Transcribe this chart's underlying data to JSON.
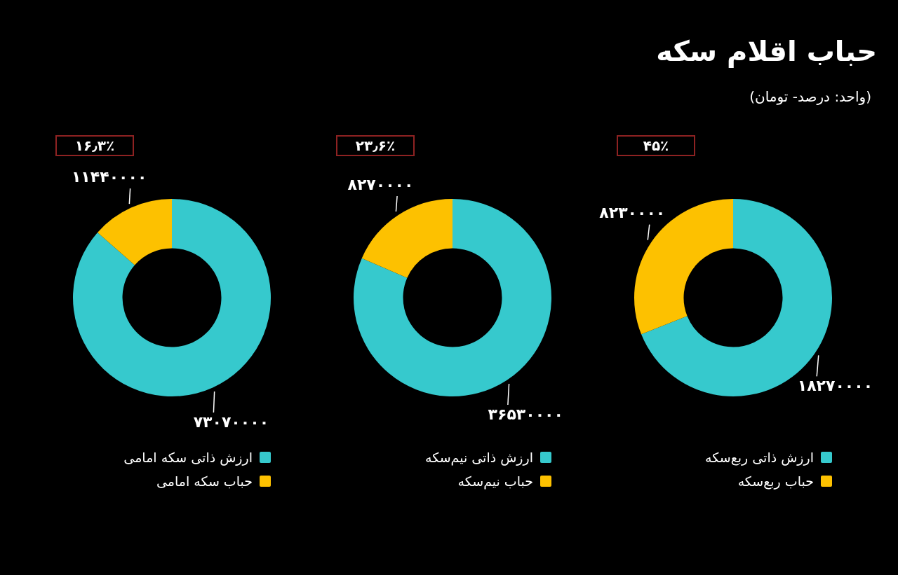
{
  "chart_data": [
    {
      "type": "donut",
      "title": "حباب اقلام سکه",
      "subtitle": "(واحد: درصد- تومان)",
      "categories": [
        "ارزش ذاتی ربع‌سکه",
        "حباب ربع‌سکه"
      ],
      "values": [
        18270000,
        8230000
      ],
      "colors": [
        "#36c9cd",
        "#fdc100"
      ],
      "value_labels": [
        "۱۸۲۷۰۰۰۰",
        "۸۲۳۰۰۰۰"
      ],
      "annotations": [
        "۴۵٪"
      ],
      "legend": "bottom"
    },
    {
      "type": "donut",
      "categories": [
        "ارزش ذاتی نیم‌سکه",
        "حباب نیم‌سکه"
      ],
      "values": [
        36530000,
        8270000
      ],
      "colors": [
        "#36c9cd",
        "#fdc100"
      ],
      "value_labels": [
        "۳۶۵۳۰۰۰۰",
        "۸۲۷۰۰۰۰"
      ],
      "annotations": [
        "۲۳٫۶٪"
      ],
      "legend": "bottom"
    },
    {
      "type": "donut",
      "categories": [
        "ارزش ذاتی سکه امامی",
        "حباب سکه امامی"
      ],
      "values": [
        73070000,
        11440000
      ],
      "colors": [
        "#36c9cd",
        "#fdc100"
      ],
      "value_labels": [
        "۷۳۰۷۰۰۰۰",
        "۱۱۴۴۰۰۰۰"
      ],
      "annotations": [
        "۱۶٫۳٪"
      ],
      "legend": "bottom"
    }
  ]
}
